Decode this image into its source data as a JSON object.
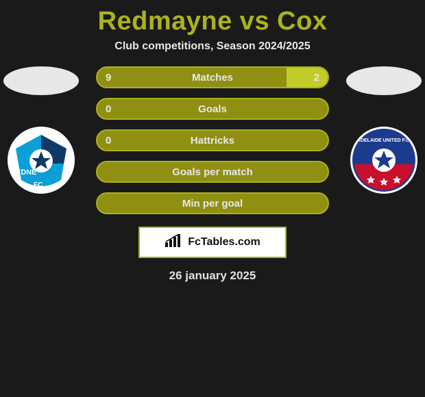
{
  "title": "Redmayne vs Cox",
  "subtitle": "Club competitions, Season 2024/2025",
  "date": "26 january 2025",
  "brand": "FcTables.com",
  "colors": {
    "accent": "#aab31d",
    "bar_bg": "#8f8f12",
    "bar_fill": "#c1cc2a",
    "page_bg": "#1a1a1a",
    "text_light": "#e8e8ea"
  },
  "left_player": {
    "club_hint": "YDNE FC",
    "badge_primary": "#0a9fd6",
    "badge_secondary": "#0d3b66"
  },
  "right_player": {
    "club_hint": "ADELAIDE UNITED F.C.",
    "badge_primary": "#1b3b8c",
    "badge_secondary": "#c8102e"
  },
  "bars": [
    {
      "label": "Matches",
      "left": "9",
      "right": "2",
      "right_fill_pct": 18
    },
    {
      "label": "Goals",
      "left": "0",
      "right": "",
      "right_fill_pct": 0
    },
    {
      "label": "Hattricks",
      "left": "0",
      "right": "",
      "right_fill_pct": 0
    },
    {
      "label": "Goals per match",
      "left": "",
      "right": "",
      "right_fill_pct": 0
    },
    {
      "label": "Min per goal",
      "left": "",
      "right": "",
      "right_fill_pct": 0
    }
  ]
}
